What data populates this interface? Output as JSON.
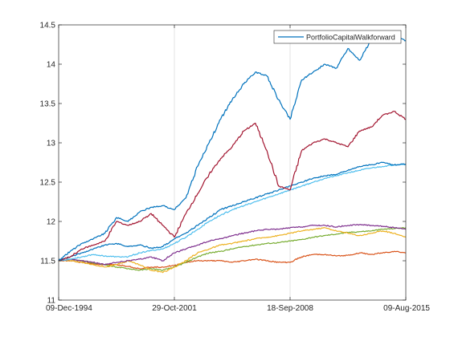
{
  "chart_data": {
    "type": "line",
    "title": "",
    "xlabel": "",
    "ylabel": "",
    "x_ticks": [
      "09-Dec-1994",
      "29-Oct-2001",
      "18-Sep-2008",
      "09-Aug-2015"
    ],
    "x_tick_positions": [
      0,
      1,
      2,
      3
    ],
    "xlim": [
      0,
      3
    ],
    "ylim": [
      11,
      14.5
    ],
    "y_ticks": [
      11,
      11.5,
      12,
      12.5,
      13,
      13.5,
      14,
      14.5
    ],
    "y_tick_labels": [
      "11",
      "11.5",
      "12",
      "12.5",
      "13",
      "13.5",
      "14",
      "14.5"
    ],
    "grid": "x-only",
    "legend": {
      "placement": "top-right",
      "entries": [
        "PortfolioCapitalWalkforward"
      ]
    },
    "x": [
      0,
      0.1,
      0.2,
      0.3,
      0.4,
      0.5,
      0.6,
      0.7,
      0.8,
      0.9,
      1.0,
      1.1,
      1.2,
      1.3,
      1.4,
      1.5,
      1.6,
      1.7,
      1.8,
      1.9,
      2.0,
      2.1,
      2.2,
      2.3,
      2.4,
      2.5,
      2.6,
      2.7,
      2.8,
      2.9,
      3.0
    ],
    "series": [
      {
        "name": "PortfolioCapitalWalkforward",
        "color": "#0072BD",
        "values": [
          11.5,
          11.62,
          11.72,
          11.78,
          11.85,
          12.05,
          12.0,
          12.12,
          12.18,
          12.2,
          12.15,
          12.3,
          12.7,
          13.0,
          13.3,
          13.55,
          13.75,
          13.9,
          13.85,
          13.55,
          13.3,
          13.8,
          13.9,
          14.0,
          13.95,
          14.2,
          14.05,
          14.3,
          14.4,
          14.35,
          14.3
        ]
      },
      {
        "name": "",
        "color": "#A2142F",
        "values": [
          11.5,
          11.55,
          11.65,
          11.7,
          11.75,
          12.0,
          11.95,
          12.0,
          12.1,
          11.95,
          11.8,
          12.1,
          12.35,
          12.6,
          12.8,
          12.95,
          13.15,
          13.25,
          12.9,
          12.45,
          12.4,
          12.9,
          13.0,
          13.05,
          13.0,
          12.95,
          13.15,
          13.2,
          13.35,
          13.4,
          13.3
        ]
      },
      {
        "name": "",
        "color": "#0072BD",
        "values": [
          11.5,
          11.55,
          11.6,
          11.65,
          11.7,
          11.72,
          11.68,
          11.7,
          11.66,
          11.68,
          11.78,
          11.85,
          11.95,
          12.05,
          12.15,
          12.2,
          12.25,
          12.3,
          12.35,
          12.4,
          12.45,
          12.5,
          12.55,
          12.58,
          12.6,
          12.65,
          12.7,
          12.72,
          12.75,
          12.72,
          12.73
        ]
      },
      {
        "name": "",
        "color": "#4DBEEE",
        "values": [
          11.5,
          11.52,
          11.55,
          11.58,
          11.56,
          11.55,
          11.55,
          11.6,
          11.63,
          11.65,
          11.72,
          11.8,
          11.9,
          12.0,
          12.08,
          12.15,
          12.2,
          12.25,
          12.3,
          12.35,
          12.4,
          12.45,
          12.5,
          12.55,
          12.58,
          12.62,
          12.65,
          12.68,
          12.7,
          12.72,
          12.73
        ]
      },
      {
        "name": "",
        "color": "#7E2F8E",
        "values": [
          11.5,
          11.52,
          11.5,
          11.48,
          11.45,
          11.48,
          11.5,
          11.52,
          11.55,
          11.5,
          11.6,
          11.65,
          11.7,
          11.75,
          11.78,
          11.82,
          11.85,
          11.88,
          11.9,
          11.9,
          11.92,
          11.93,
          11.95,
          11.95,
          11.93,
          11.95,
          11.96,
          11.95,
          11.94,
          11.92,
          11.9
        ]
      },
      {
        "name": "",
        "color": "#EDB120",
        "values": [
          11.5,
          11.5,
          11.48,
          11.45,
          11.42,
          11.45,
          11.5,
          11.45,
          11.38,
          11.35,
          11.42,
          11.5,
          11.6,
          11.65,
          11.7,
          11.72,
          11.75,
          11.78,
          11.8,
          11.82,
          11.85,
          11.88,
          11.9,
          11.92,
          11.88,
          11.85,
          11.82,
          11.85,
          11.88,
          11.85,
          11.8
        ]
      },
      {
        "name": "",
        "color": "#77AC30",
        "values": [
          11.5,
          11.52,
          11.5,
          11.47,
          11.45,
          11.42,
          11.4,
          11.38,
          11.4,
          11.38,
          11.42,
          11.48,
          11.55,
          11.6,
          11.62,
          11.65,
          11.68,
          11.7,
          11.72,
          11.73,
          11.75,
          11.77,
          11.8,
          11.82,
          11.84,
          11.86,
          11.87,
          11.88,
          11.9,
          11.91,
          11.92
        ]
      },
      {
        "name": "",
        "color": "#D95319",
        "values": [
          11.5,
          11.5,
          11.48,
          11.46,
          11.45,
          11.45,
          11.43,
          11.4,
          11.42,
          11.42,
          11.44,
          11.48,
          11.5,
          11.5,
          11.5,
          11.48,
          11.5,
          11.52,
          11.5,
          11.48,
          11.48,
          11.55,
          11.58,
          11.58,
          11.56,
          11.57,
          11.6,
          11.58,
          11.6,
          11.62,
          11.6
        ]
      }
    ]
  }
}
